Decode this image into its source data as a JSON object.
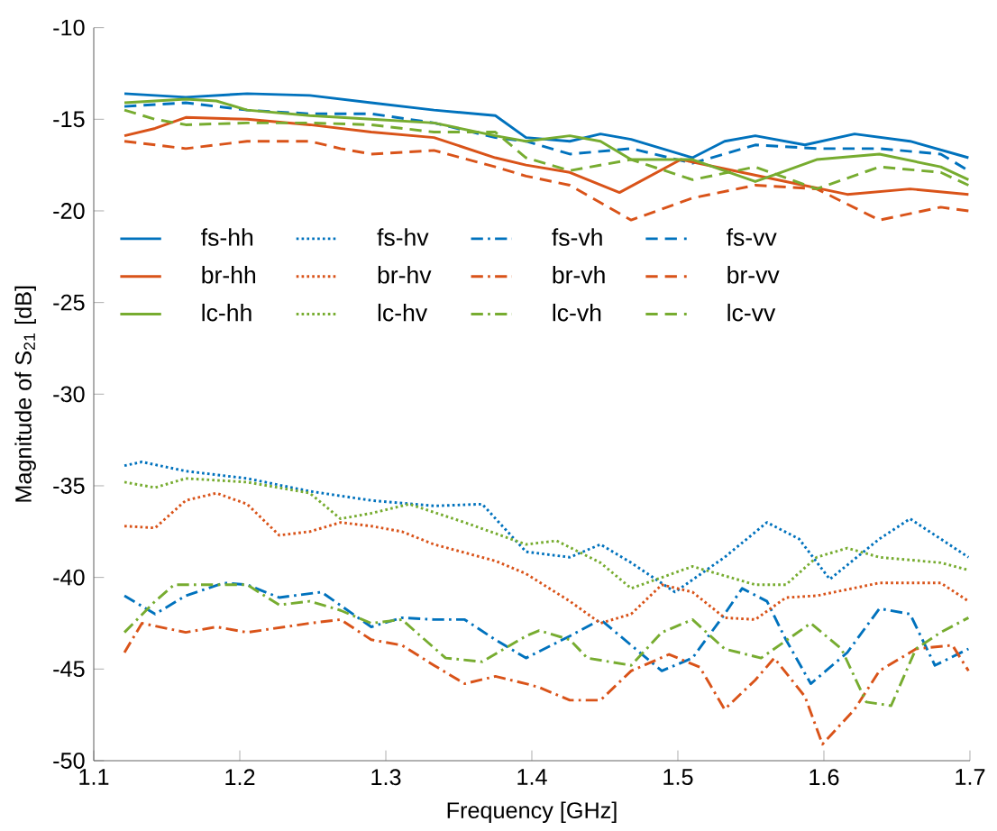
{
  "chart_data": {
    "type": "line",
    "xlabel": "Frequency [GHz]",
    "ylabel": "Magnitude of S$_{21}$ [dB]",
    "xlim": [
      1.1,
      1.7
    ],
    "ylim": [
      -50,
      -10
    ],
    "xticks": [
      1.1,
      1.2,
      1.3,
      1.4,
      1.5,
      1.6,
      1.7
    ],
    "yticks": [
      -50,
      -45,
      -40,
      -35,
      -30,
      -25,
      -20,
      -15,
      -10
    ],
    "legend": "top left",
    "grid": false,
    "series": [
      {
        "name": "fs-hh",
        "color": "#0072bd",
        "line_style": "solid",
        "x": [
          1.121,
          1.163,
          1.205,
          1.248,
          1.29,
          1.333,
          1.375,
          1.396,
          1.426,
          1.447,
          1.468,
          1.51,
          1.532,
          1.553,
          1.587,
          1.621,
          1.659,
          1.699
        ],
        "values": [
          -13.6,
          -13.8,
          -13.6,
          -13.7,
          -14.1,
          -14.5,
          -14.8,
          -16.0,
          -16.2,
          -15.8,
          -16.1,
          -17.1,
          -16.2,
          -15.9,
          -16.4,
          -15.8,
          -16.2,
          -17.1
        ]
      },
      {
        "name": "fs-hv",
        "color": "#0072bd",
        "line_style": "dotted",
        "x": [
          1.121,
          1.133,
          1.163,
          1.205,
          1.248,
          1.29,
          1.333,
          1.366,
          1.396,
          1.426,
          1.447,
          1.468,
          1.498,
          1.532,
          1.561,
          1.583,
          1.604,
          1.638,
          1.659,
          1.699
        ],
        "values": [
          -33.9,
          -33.7,
          -34.2,
          -34.6,
          -35.3,
          -35.8,
          -36.1,
          -36.0,
          -38.6,
          -38.9,
          -38.2,
          -39.2,
          -40.8,
          -38.9,
          -37.0,
          -37.9,
          -40.1,
          -37.9,
          -36.8,
          -38.9
        ]
      },
      {
        "name": "fs-vh",
        "color": "#0072bd",
        "line_style": "dashdot",
        "x": [
          1.121,
          1.142,
          1.163,
          1.189,
          1.205,
          1.227,
          1.256,
          1.29,
          1.311,
          1.333,
          1.354,
          1.375,
          1.396,
          1.426,
          1.447,
          1.468,
          1.489,
          1.51,
          1.532,
          1.544,
          1.561,
          1.574,
          1.591,
          1.616,
          1.638,
          1.659,
          1.676,
          1.699
        ],
        "values": [
          -41.0,
          -42.0,
          -41.0,
          -40.3,
          -40.4,
          -41.1,
          -40.8,
          -42.7,
          -42.2,
          -42.3,
          -42.3,
          -43.4,
          -44.4,
          -43.2,
          -42.3,
          -43.7,
          -45.1,
          -44.4,
          -42.0,
          -40.6,
          -41.3,
          -43.4,
          -45.8,
          -44.1,
          -41.7,
          -42.0,
          -44.8,
          -43.9
        ]
      },
      {
        "name": "fs-vv",
        "color": "#0072bd",
        "line_style": "dashed",
        "x": [
          1.121,
          1.163,
          1.205,
          1.248,
          1.29,
          1.333,
          1.375,
          1.396,
          1.426,
          1.468,
          1.51,
          1.553,
          1.595,
          1.638,
          1.68,
          1.699
        ],
        "values": [
          -14.3,
          -14.1,
          -14.5,
          -14.7,
          -14.7,
          -15.2,
          -16.0,
          -16.2,
          -16.9,
          -16.6,
          -17.4,
          -16.4,
          -16.6,
          -16.6,
          -16.9,
          -17.8
        ]
      },
      {
        "name": "br-hh",
        "color": "#d95319",
        "line_style": "solid",
        "x": [
          1.121,
          1.142,
          1.163,
          1.205,
          1.248,
          1.29,
          1.333,
          1.375,
          1.396,
          1.426,
          1.46,
          1.502,
          1.532,
          1.574,
          1.616,
          1.659,
          1.699
        ],
        "values": [
          -15.9,
          -15.5,
          -14.9,
          -15.0,
          -15.3,
          -15.7,
          -16.0,
          -17.1,
          -17.5,
          -17.9,
          -19.0,
          -17.2,
          -17.7,
          -18.4,
          -19.1,
          -18.8,
          -19.1
        ]
      },
      {
        "name": "br-hv",
        "color": "#d95319",
        "line_style": "dotted",
        "x": [
          1.121,
          1.142,
          1.163,
          1.184,
          1.205,
          1.227,
          1.248,
          1.269,
          1.29,
          1.311,
          1.333,
          1.375,
          1.396,
          1.426,
          1.447,
          1.468,
          1.489,
          1.51,
          1.532,
          1.553,
          1.574,
          1.595,
          1.638,
          1.68,
          1.699
        ],
        "values": [
          -37.2,
          -37.3,
          -35.8,
          -35.4,
          -36.0,
          -37.7,
          -37.5,
          -37.0,
          -37.2,
          -37.5,
          -38.2,
          -39.1,
          -39.8,
          -41.3,
          -42.5,
          -42.0,
          -40.4,
          -40.8,
          -42.2,
          -42.3,
          -41.1,
          -41.0,
          -40.3,
          -40.3,
          -41.3
        ]
      },
      {
        "name": "br-vh",
        "color": "#d95319",
        "line_style": "dashdot",
        "x": [
          1.121,
          1.133,
          1.163,
          1.184,
          1.205,
          1.248,
          1.269,
          1.29,
          1.311,
          1.333,
          1.354,
          1.375,
          1.396,
          1.405,
          1.426,
          1.447,
          1.468,
          1.494,
          1.515,
          1.532,
          1.553,
          1.566,
          1.587,
          1.599,
          1.621,
          1.638,
          1.663,
          1.688,
          1.699
        ],
        "values": [
          -44.1,
          -42.5,
          -43.0,
          -42.7,
          -43.0,
          -42.5,
          -42.3,
          -43.4,
          -43.7,
          -44.8,
          -45.8,
          -45.4,
          -45.8,
          -46.0,
          -46.7,
          -46.7,
          -45.1,
          -44.2,
          -44.9,
          -47.2,
          -45.6,
          -44.4,
          -46.5,
          -49.1,
          -47.2,
          -45.1,
          -43.9,
          -43.7,
          -45.1
        ]
      },
      {
        "name": "br-vv",
        "color": "#d95319",
        "line_style": "dashed",
        "x": [
          1.121,
          1.163,
          1.205,
          1.248,
          1.269,
          1.29,
          1.333,
          1.375,
          1.396,
          1.426,
          1.468,
          1.51,
          1.553,
          1.595,
          1.638,
          1.68,
          1.699
        ],
        "values": [
          -16.2,
          -16.6,
          -16.2,
          -16.2,
          -16.6,
          -16.9,
          -16.7,
          -17.6,
          -18.1,
          -18.6,
          -20.5,
          -19.3,
          -18.6,
          -18.8,
          -20.5,
          -19.8,
          -20.0
        ]
      },
      {
        "name": "lc-hh",
        "color": "#77ac30",
        "line_style": "solid",
        "x": [
          1.121,
          1.163,
          1.184,
          1.205,
          1.248,
          1.29,
          1.333,
          1.375,
          1.396,
          1.426,
          1.447,
          1.468,
          1.51,
          1.553,
          1.574,
          1.595,
          1.638,
          1.68,
          1.699
        ],
        "values": [
          -14.1,
          -13.9,
          -14.0,
          -14.5,
          -14.8,
          -15.0,
          -15.2,
          -15.9,
          -16.2,
          -15.9,
          -16.2,
          -17.2,
          -17.2,
          -18.4,
          -17.8,
          -17.2,
          -16.9,
          -17.6,
          -18.3
        ]
      },
      {
        "name": "lc-hv",
        "color": "#77ac30",
        "line_style": "dotted",
        "x": [
          1.121,
          1.142,
          1.163,
          1.205,
          1.248,
          1.269,
          1.29,
          1.316,
          1.354,
          1.396,
          1.417,
          1.447,
          1.468,
          1.51,
          1.553,
          1.574,
          1.595,
          1.616,
          1.638,
          1.68,
          1.699
        ],
        "values": [
          -34.8,
          -35.1,
          -34.6,
          -34.8,
          -35.4,
          -36.8,
          -36.5,
          -36.0,
          -37.0,
          -38.2,
          -38.0,
          -39.2,
          -40.6,
          -39.4,
          -40.4,
          -40.4,
          -38.9,
          -38.4,
          -38.9,
          -39.2,
          -39.6
        ]
      },
      {
        "name": "lc-vh",
        "color": "#77ac30",
        "line_style": "dashdot",
        "x": [
          1.121,
          1.142,
          1.155,
          1.184,
          1.205,
          1.227,
          1.248,
          1.269,
          1.29,
          1.311,
          1.341,
          1.366,
          1.396,
          1.405,
          1.426,
          1.438,
          1.468,
          1.489,
          1.51,
          1.532,
          1.557,
          1.591,
          1.612,
          1.629,
          1.646,
          1.663,
          1.68,
          1.699
        ],
        "values": [
          -43.0,
          -41.3,
          -40.4,
          -40.4,
          -40.4,
          -41.5,
          -41.3,
          -41.8,
          -42.5,
          -42.3,
          -44.4,
          -44.6,
          -43.2,
          -42.9,
          -43.4,
          -44.4,
          -44.8,
          -43.0,
          -42.3,
          -43.9,
          -44.4,
          -42.5,
          -43.9,
          -46.8,
          -47.0,
          -43.9,
          -43.0,
          -42.2
        ]
      },
      {
        "name": "lc-vv",
        "color": "#77ac30",
        "line_style": "dashed",
        "x": [
          1.121,
          1.142,
          1.163,
          1.205,
          1.248,
          1.29,
          1.333,
          1.375,
          1.396,
          1.426,
          1.468,
          1.51,
          1.553,
          1.595,
          1.638,
          1.68,
          1.699
        ],
        "values": [
          -14.5,
          -15.0,
          -15.3,
          -15.2,
          -15.2,
          -15.3,
          -15.7,
          -15.7,
          -17.1,
          -17.8,
          -17.2,
          -18.3,
          -17.6,
          -18.8,
          -17.6,
          -17.9,
          -18.6
        ]
      }
    ]
  }
}
